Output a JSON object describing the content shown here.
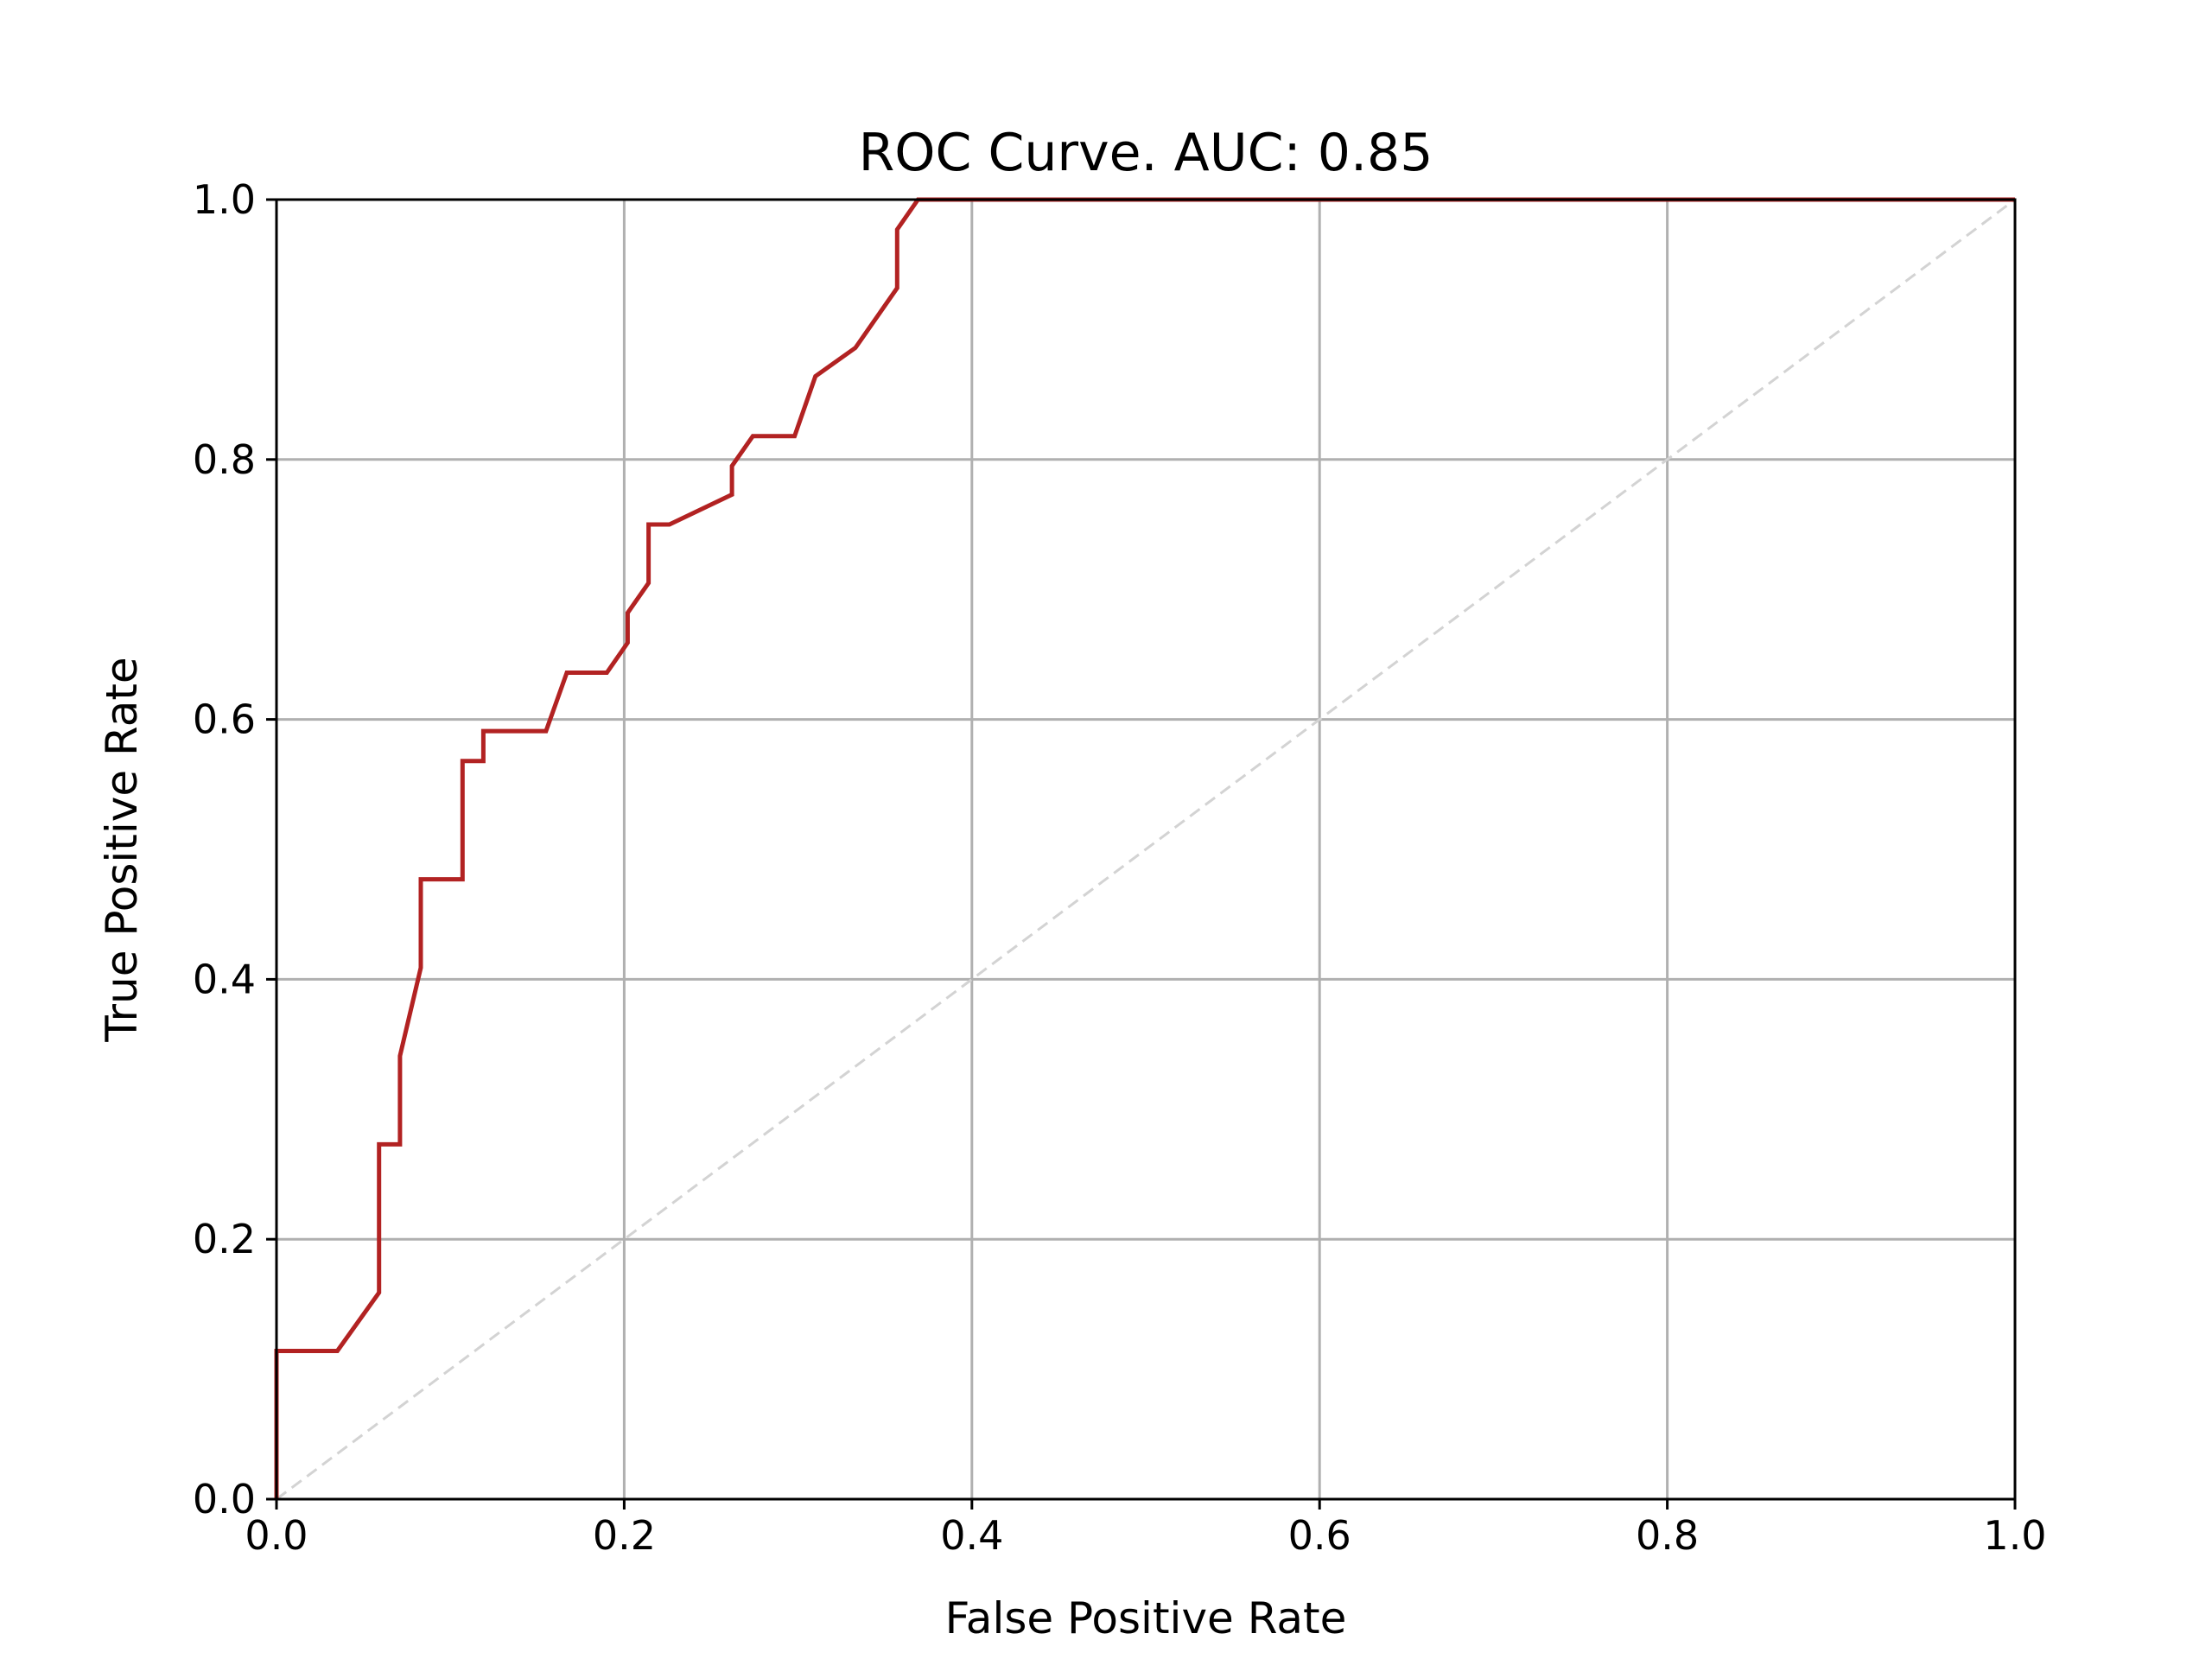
{
  "chart_data": {
    "type": "line",
    "title": "ROC Curve. AUC: 0.85",
    "xlabel": "False Positive Rate",
    "ylabel": "True Positive Rate",
    "xlim": [
      0,
      1
    ],
    "ylim": [
      0,
      1
    ],
    "xticks": [
      "0.0",
      "0.2",
      "0.4",
      "0.6",
      "0.8",
      "1.0"
    ],
    "yticks": [
      "0.0",
      "0.2",
      "0.4",
      "0.6",
      "0.8",
      "1.0"
    ],
    "grid": true,
    "legend": "none",
    "series": [
      {
        "color": "#b22222",
        "style": "solid",
        "x": [
          0.0,
          0.0,
          0.035,
          0.059,
          0.059,
          0.071,
          0.071,
          0.083,
          0.083,
          0.107,
          0.107,
          0.119,
          0.119,
          0.155,
          0.167,
          0.19,
          0.202,
          0.202,
          0.214,
          0.214,
          0.226,
          0.262,
          0.262,
          0.274,
          0.298,
          0.31,
          0.333,
          0.357,
          0.357,
          0.369,
          1.0
        ],
        "y": [
          0.0,
          0.114,
          0.114,
          0.159,
          0.273,
          0.273,
          0.341,
          0.409,
          0.477,
          0.477,
          0.568,
          0.568,
          0.591,
          0.591,
          0.636,
          0.636,
          0.659,
          0.682,
          0.705,
          0.75,
          0.75,
          0.773,
          0.795,
          0.818,
          0.818,
          0.864,
          0.886,
          0.932,
          0.977,
          1.0,
          1.0
        ]
      },
      {
        "color": "#d3d3d3",
        "style": "dashed",
        "x": [
          0,
          1
        ],
        "y": [
          0,
          1
        ]
      }
    ]
  }
}
